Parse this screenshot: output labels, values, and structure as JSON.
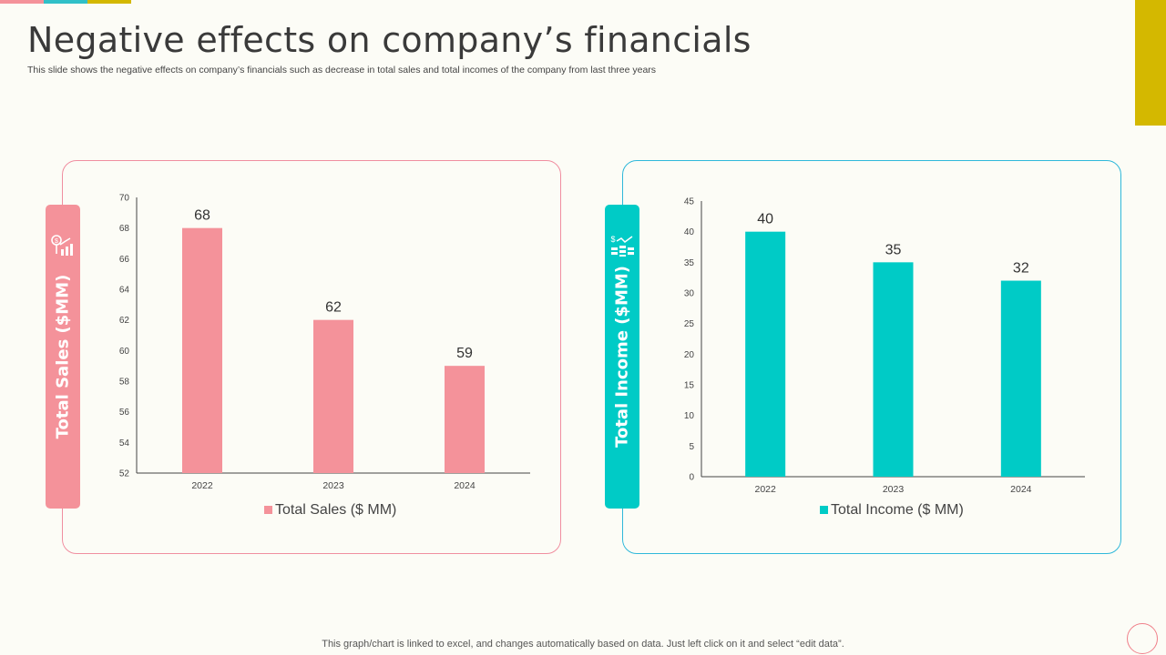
{
  "header": {
    "title": "Negative effects on company’s financials",
    "subtitle": "This slide shows the negative effects on company’s financials such as decrease in total sales and total incomes of the company from last three years"
  },
  "colors": {
    "pink": "#f4929a",
    "pink_border": "#f08ea0",
    "teal": "#00cbc6",
    "teal_border": "#2fb8da",
    "accent_yellow": "#d4b800",
    "top_bar": [
      "#f4929a",
      "#30c0c8",
      "#d4b800"
    ]
  },
  "left_panel": {
    "tab_label": "Total Sales ($MM)",
    "tab_icon": "sales-growth-icon",
    "legend": "Total Sales ($ MM)"
  },
  "right_panel": {
    "tab_label": "Total Income ($MM)",
    "tab_icon": "income-growth-icon",
    "legend": "Total Income ($ MM)"
  },
  "chart_data": [
    {
      "type": "bar",
      "categories": [
        "2022",
        "2023",
        "2024"
      ],
      "series": [
        {
          "name": "Total Sales ($ MM)",
          "values": [
            68,
            62,
            59
          ]
        }
      ],
      "ylim": [
        52,
        70
      ],
      "yticks": [
        52,
        54,
        56,
        58,
        60,
        62,
        64,
        66,
        68,
        70
      ],
      "grid": false,
      "legend_position": "bottom"
    },
    {
      "type": "bar",
      "categories": [
        "2022",
        "2023",
        "2024"
      ],
      "series": [
        {
          "name": "Total Income ($ MM)",
          "values": [
            40,
            35,
            32
          ]
        }
      ],
      "ylim": [
        0,
        45
      ],
      "yticks": [
        0,
        5,
        10,
        15,
        20,
        25,
        30,
        35,
        40,
        45
      ],
      "grid": false,
      "legend_position": "bottom"
    }
  ],
  "footer": {
    "note": "This graph/chart is linked to excel,  and changes automatically based on data. Just left click on it and select “edit data”."
  }
}
